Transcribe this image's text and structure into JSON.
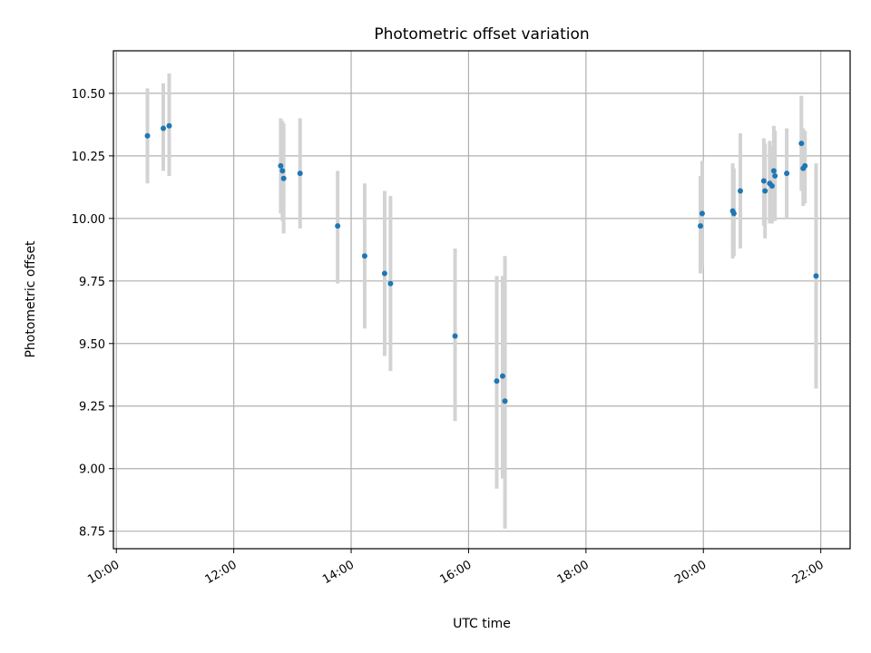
{
  "chart_data": {
    "type": "scatter",
    "title": "Photometric offset variation",
    "xlabel": "UTC time",
    "ylabel": "Photometric offset",
    "x_unit": "hours UTC",
    "xlim": [
      9.95,
      22.5
    ],
    "ylim": [
      8.68,
      10.67
    ],
    "grid": true,
    "x_tick_values": [
      10,
      12,
      14,
      16,
      18,
      20,
      22
    ],
    "x_tick_labels": [
      "10:00",
      "12:00",
      "14:00",
      "16:00",
      "18:00",
      "20:00",
      "22:00"
    ],
    "y_tick_values": [
      8.75,
      9.0,
      9.25,
      9.5,
      9.75,
      10.0,
      10.25,
      10.5
    ],
    "y_tick_labels": [
      "8.75",
      "9.00",
      "9.25",
      "9.50",
      "9.75",
      "10.00",
      "10.25",
      "10.50"
    ],
    "colors": {
      "points": "#1f77b4",
      "errorbars": "#d3d3d3",
      "grid": "#b0b0b0"
    },
    "points": [
      {
        "x": 10.53,
        "y": 10.33,
        "ylo": 10.14,
        "yhi": 10.52
      },
      {
        "x": 10.8,
        "y": 10.36,
        "ylo": 10.19,
        "yhi": 10.54
      },
      {
        "x": 10.9,
        "y": 10.37,
        "ylo": 10.17,
        "yhi": 10.58
      },
      {
        "x": 12.8,
        "y": 10.21,
        "ylo": 10.02,
        "yhi": 10.4
      },
      {
        "x": 12.83,
        "y": 10.19,
        "ylo": 9.99,
        "yhi": 10.39
      },
      {
        "x": 12.85,
        "y": 10.16,
        "ylo": 9.94,
        "yhi": 10.38
      },
      {
        "x": 13.13,
        "y": 10.18,
        "ylo": 9.96,
        "yhi": 10.4
      },
      {
        "x": 13.77,
        "y": 9.97,
        "ylo": 9.74,
        "yhi": 10.19
      },
      {
        "x": 14.23,
        "y": 9.85,
        "ylo": 9.56,
        "yhi": 10.14
      },
      {
        "x": 14.57,
        "y": 9.78,
        "ylo": 9.45,
        "yhi": 10.11
      },
      {
        "x": 14.67,
        "y": 9.74,
        "ylo": 9.39,
        "yhi": 10.09
      },
      {
        "x": 15.77,
        "y": 9.53,
        "ylo": 9.19,
        "yhi": 9.88
      },
      {
        "x": 16.48,
        "y": 9.35,
        "ylo": 8.92,
        "yhi": 9.77
      },
      {
        "x": 16.58,
        "y": 9.37,
        "ylo": 8.96,
        "yhi": 9.77
      },
      {
        "x": 16.62,
        "y": 9.27,
        "ylo": 8.76,
        "yhi": 9.85
      },
      {
        "x": 19.95,
        "y": 9.97,
        "ylo": 9.78,
        "yhi": 10.17
      },
      {
        "x": 19.98,
        "y": 10.02,
        "ylo": 9.81,
        "yhi": 10.23
      },
      {
        "x": 20.5,
        "y": 10.03,
        "ylo": 9.84,
        "yhi": 10.22
      },
      {
        "x": 20.52,
        "y": 10.02,
        "ylo": 9.85,
        "yhi": 10.2
      },
      {
        "x": 20.63,
        "y": 10.11,
        "ylo": 9.88,
        "yhi": 10.34
      },
      {
        "x": 21.03,
        "y": 10.15,
        "ylo": 9.97,
        "yhi": 10.32
      },
      {
        "x": 21.05,
        "y": 10.11,
        "ylo": 9.92,
        "yhi": 10.3
      },
      {
        "x": 21.13,
        "y": 10.14,
        "ylo": 9.98,
        "yhi": 10.31
      },
      {
        "x": 21.17,
        "y": 10.13,
        "ylo": 9.98,
        "yhi": 10.29
      },
      {
        "x": 21.2,
        "y": 10.19,
        "ylo": 10.01,
        "yhi": 10.37
      },
      {
        "x": 21.22,
        "y": 10.17,
        "ylo": 9.99,
        "yhi": 10.35
      },
      {
        "x": 21.42,
        "y": 10.18,
        "ylo": 10.0,
        "yhi": 10.36
      },
      {
        "x": 21.67,
        "y": 10.3,
        "ylo": 10.11,
        "yhi": 10.49
      },
      {
        "x": 21.7,
        "y": 10.2,
        "ylo": 10.05,
        "yhi": 10.36
      },
      {
        "x": 21.73,
        "y": 10.21,
        "ylo": 10.06,
        "yhi": 10.35
      },
      {
        "x": 21.92,
        "y": 9.77,
        "ylo": 9.32,
        "yhi": 10.22
      }
    ]
  }
}
